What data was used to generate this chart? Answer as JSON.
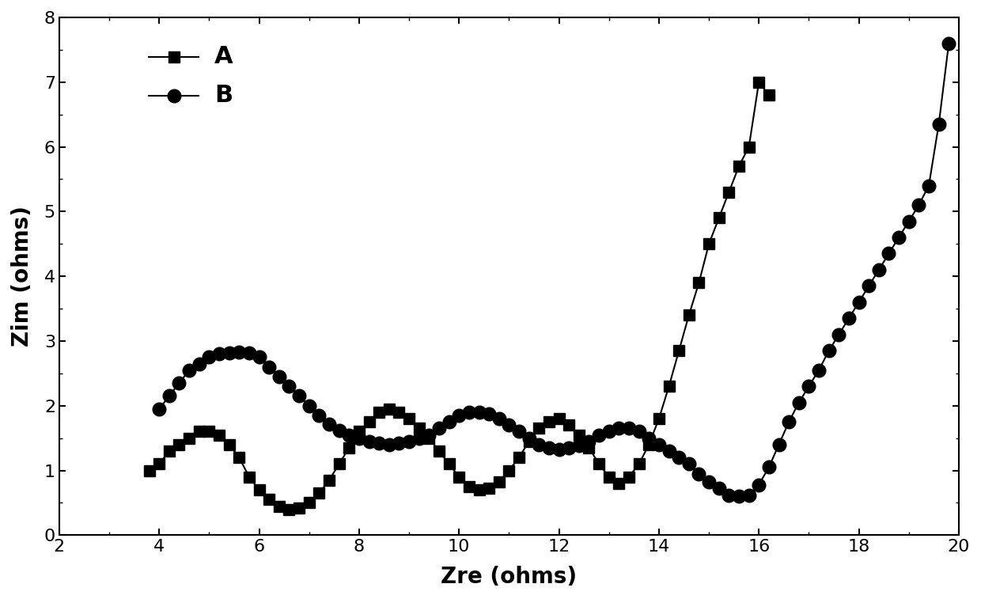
{
  "A_x": [
    3.8,
    4.0,
    4.2,
    4.4,
    4.6,
    4.8,
    5.0,
    5.2,
    5.4,
    5.6,
    5.8,
    6.0,
    6.2,
    6.4,
    6.6,
    6.8,
    7.0,
    7.2,
    7.4,
    7.6,
    7.8,
    8.0,
    8.2,
    8.4,
    8.6,
    8.8,
    9.0,
    9.2,
    9.4,
    9.6,
    9.8,
    10.0,
    10.2,
    10.4,
    10.6,
    10.8,
    11.0,
    11.2,
    11.4,
    11.6,
    11.8,
    12.0,
    12.2,
    12.4,
    12.6,
    12.8,
    13.0,
    13.2,
    13.4,
    13.6,
    13.8,
    14.0,
    14.2,
    14.4,
    14.6,
    14.8,
    15.0,
    15.2,
    15.4,
    15.6,
    15.8,
    16.0,
    16.2
  ],
  "A_y": [
    1.0,
    1.1,
    1.3,
    1.4,
    1.5,
    1.6,
    1.6,
    1.55,
    1.4,
    1.2,
    0.9,
    0.7,
    0.55,
    0.45,
    0.4,
    0.42,
    0.5,
    0.65,
    0.85,
    1.1,
    1.35,
    1.6,
    1.75,
    1.9,
    1.95,
    1.9,
    1.8,
    1.65,
    1.5,
    1.3,
    1.1,
    0.9,
    0.75,
    0.7,
    0.72,
    0.82,
    1.0,
    1.2,
    1.45,
    1.65,
    1.75,
    1.8,
    1.7,
    1.55,
    1.35,
    1.1,
    0.9,
    0.8,
    0.9,
    1.1,
    1.4,
    1.8,
    2.3,
    2.85,
    3.4,
    3.9,
    4.5,
    4.9,
    5.3,
    5.7,
    6.0,
    7.0,
    6.8
  ],
  "B_x": [
    4.0,
    4.2,
    4.4,
    4.6,
    4.8,
    5.0,
    5.2,
    5.4,
    5.6,
    5.8,
    6.0,
    6.2,
    6.4,
    6.6,
    6.8,
    7.0,
    7.2,
    7.4,
    7.6,
    7.8,
    8.0,
    8.2,
    8.4,
    8.6,
    8.8,
    9.0,
    9.2,
    9.4,
    9.6,
    9.8,
    10.0,
    10.2,
    10.4,
    10.6,
    10.8,
    11.0,
    11.2,
    11.4,
    11.6,
    11.8,
    12.0,
    12.2,
    12.4,
    12.6,
    12.8,
    13.0,
    13.2,
    13.4,
    13.6,
    13.8,
    14.0,
    14.2,
    14.4,
    14.6,
    14.8,
    15.0,
    15.2,
    15.4,
    15.6,
    15.8,
    16.0,
    16.2,
    16.4,
    16.6,
    16.8,
    17.0,
    17.2,
    17.4,
    17.6,
    17.8,
    18.0,
    18.2,
    18.4,
    18.6,
    18.8,
    19.0,
    19.2,
    19.4,
    19.6,
    19.8
  ],
  "B_y": [
    1.95,
    2.15,
    2.35,
    2.55,
    2.65,
    2.75,
    2.8,
    2.82,
    2.83,
    2.82,
    2.75,
    2.6,
    2.45,
    2.3,
    2.15,
    2.0,
    1.85,
    1.72,
    1.62,
    1.55,
    1.5,
    1.45,
    1.42,
    1.4,
    1.42,
    1.45,
    1.5,
    1.55,
    1.65,
    1.75,
    1.85,
    1.9,
    1.9,
    1.88,
    1.8,
    1.7,
    1.6,
    1.5,
    1.4,
    1.35,
    1.32,
    1.35,
    1.38,
    1.45,
    1.55,
    1.6,
    1.65,
    1.65,
    1.6,
    1.5,
    1.4,
    1.3,
    1.2,
    1.1,
    0.95,
    0.82,
    0.72,
    0.62,
    0.6,
    0.62,
    0.78,
    1.05,
    1.4,
    1.75,
    2.05,
    2.3,
    2.55,
    2.85,
    3.1,
    3.35,
    3.6,
    3.85,
    4.1,
    4.35,
    4.6,
    4.85,
    5.1,
    5.4,
    6.35,
    7.6
  ],
  "xlabel": "Zre (ohms)",
  "ylabel": "Zim (ohms)",
  "xlim": [
    2,
    20
  ],
  "ylim": [
    0,
    8
  ],
  "xticks": [
    2,
    4,
    6,
    8,
    10,
    12,
    14,
    16,
    18,
    20
  ],
  "yticks": [
    0,
    1,
    2,
    3,
    4,
    5,
    6,
    7,
    8
  ],
  "line_color": "#000000",
  "marker_A": "s",
  "marker_B": "o",
  "markersize_A": 10,
  "markersize_B": 12,
  "linewidth": 1.5,
  "legend_A": "A",
  "legend_B": "B",
  "background_color": "#ffffff",
  "font_size_labels": 20,
  "font_size_ticks": 16,
  "font_size_legend": 18
}
